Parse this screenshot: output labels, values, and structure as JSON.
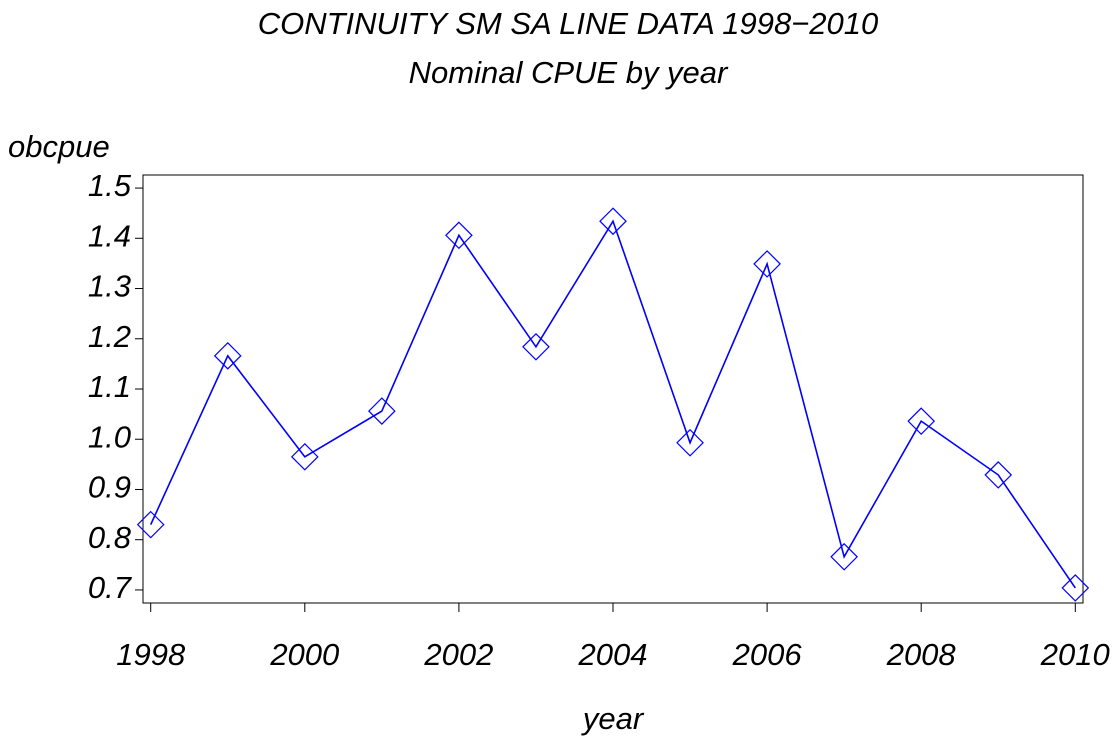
{
  "chart_data": {
    "type": "line",
    "title": "CONTINUITY SM SA LINE DATA 1998−2010",
    "subtitle": "Nominal CPUE by year",
    "x_label": "year",
    "y_label": "obcpue",
    "x": [
      1998,
      1999,
      2000,
      2001,
      2002,
      2003,
      2004,
      2005,
      2006,
      2007,
      2008,
      2009,
      2010
    ],
    "series": [
      {
        "name": "obcpue",
        "color": "#0000ff",
        "values": [
          0.83,
          1.166,
          0.965,
          1.056,
          1.406,
          1.184,
          1.434,
          0.993,
          1.349,
          0.766,
          1.036,
          0.929,
          0.704
        ]
      }
    ],
    "xlim": [
      1997.9,
      2010.1
    ],
    "xticks": [
      1998,
      2000,
      2002,
      2004,
      2006,
      2008,
      2010
    ],
    "ylim": [
      0.674,
      1.526
    ],
    "yticks": [
      0.7,
      0.8,
      0.9,
      {
        "value": 1,
        "label": "1.0"
      },
      1.1,
      1.2,
      1.3,
      1.4,
      1.5
    ]
  }
}
